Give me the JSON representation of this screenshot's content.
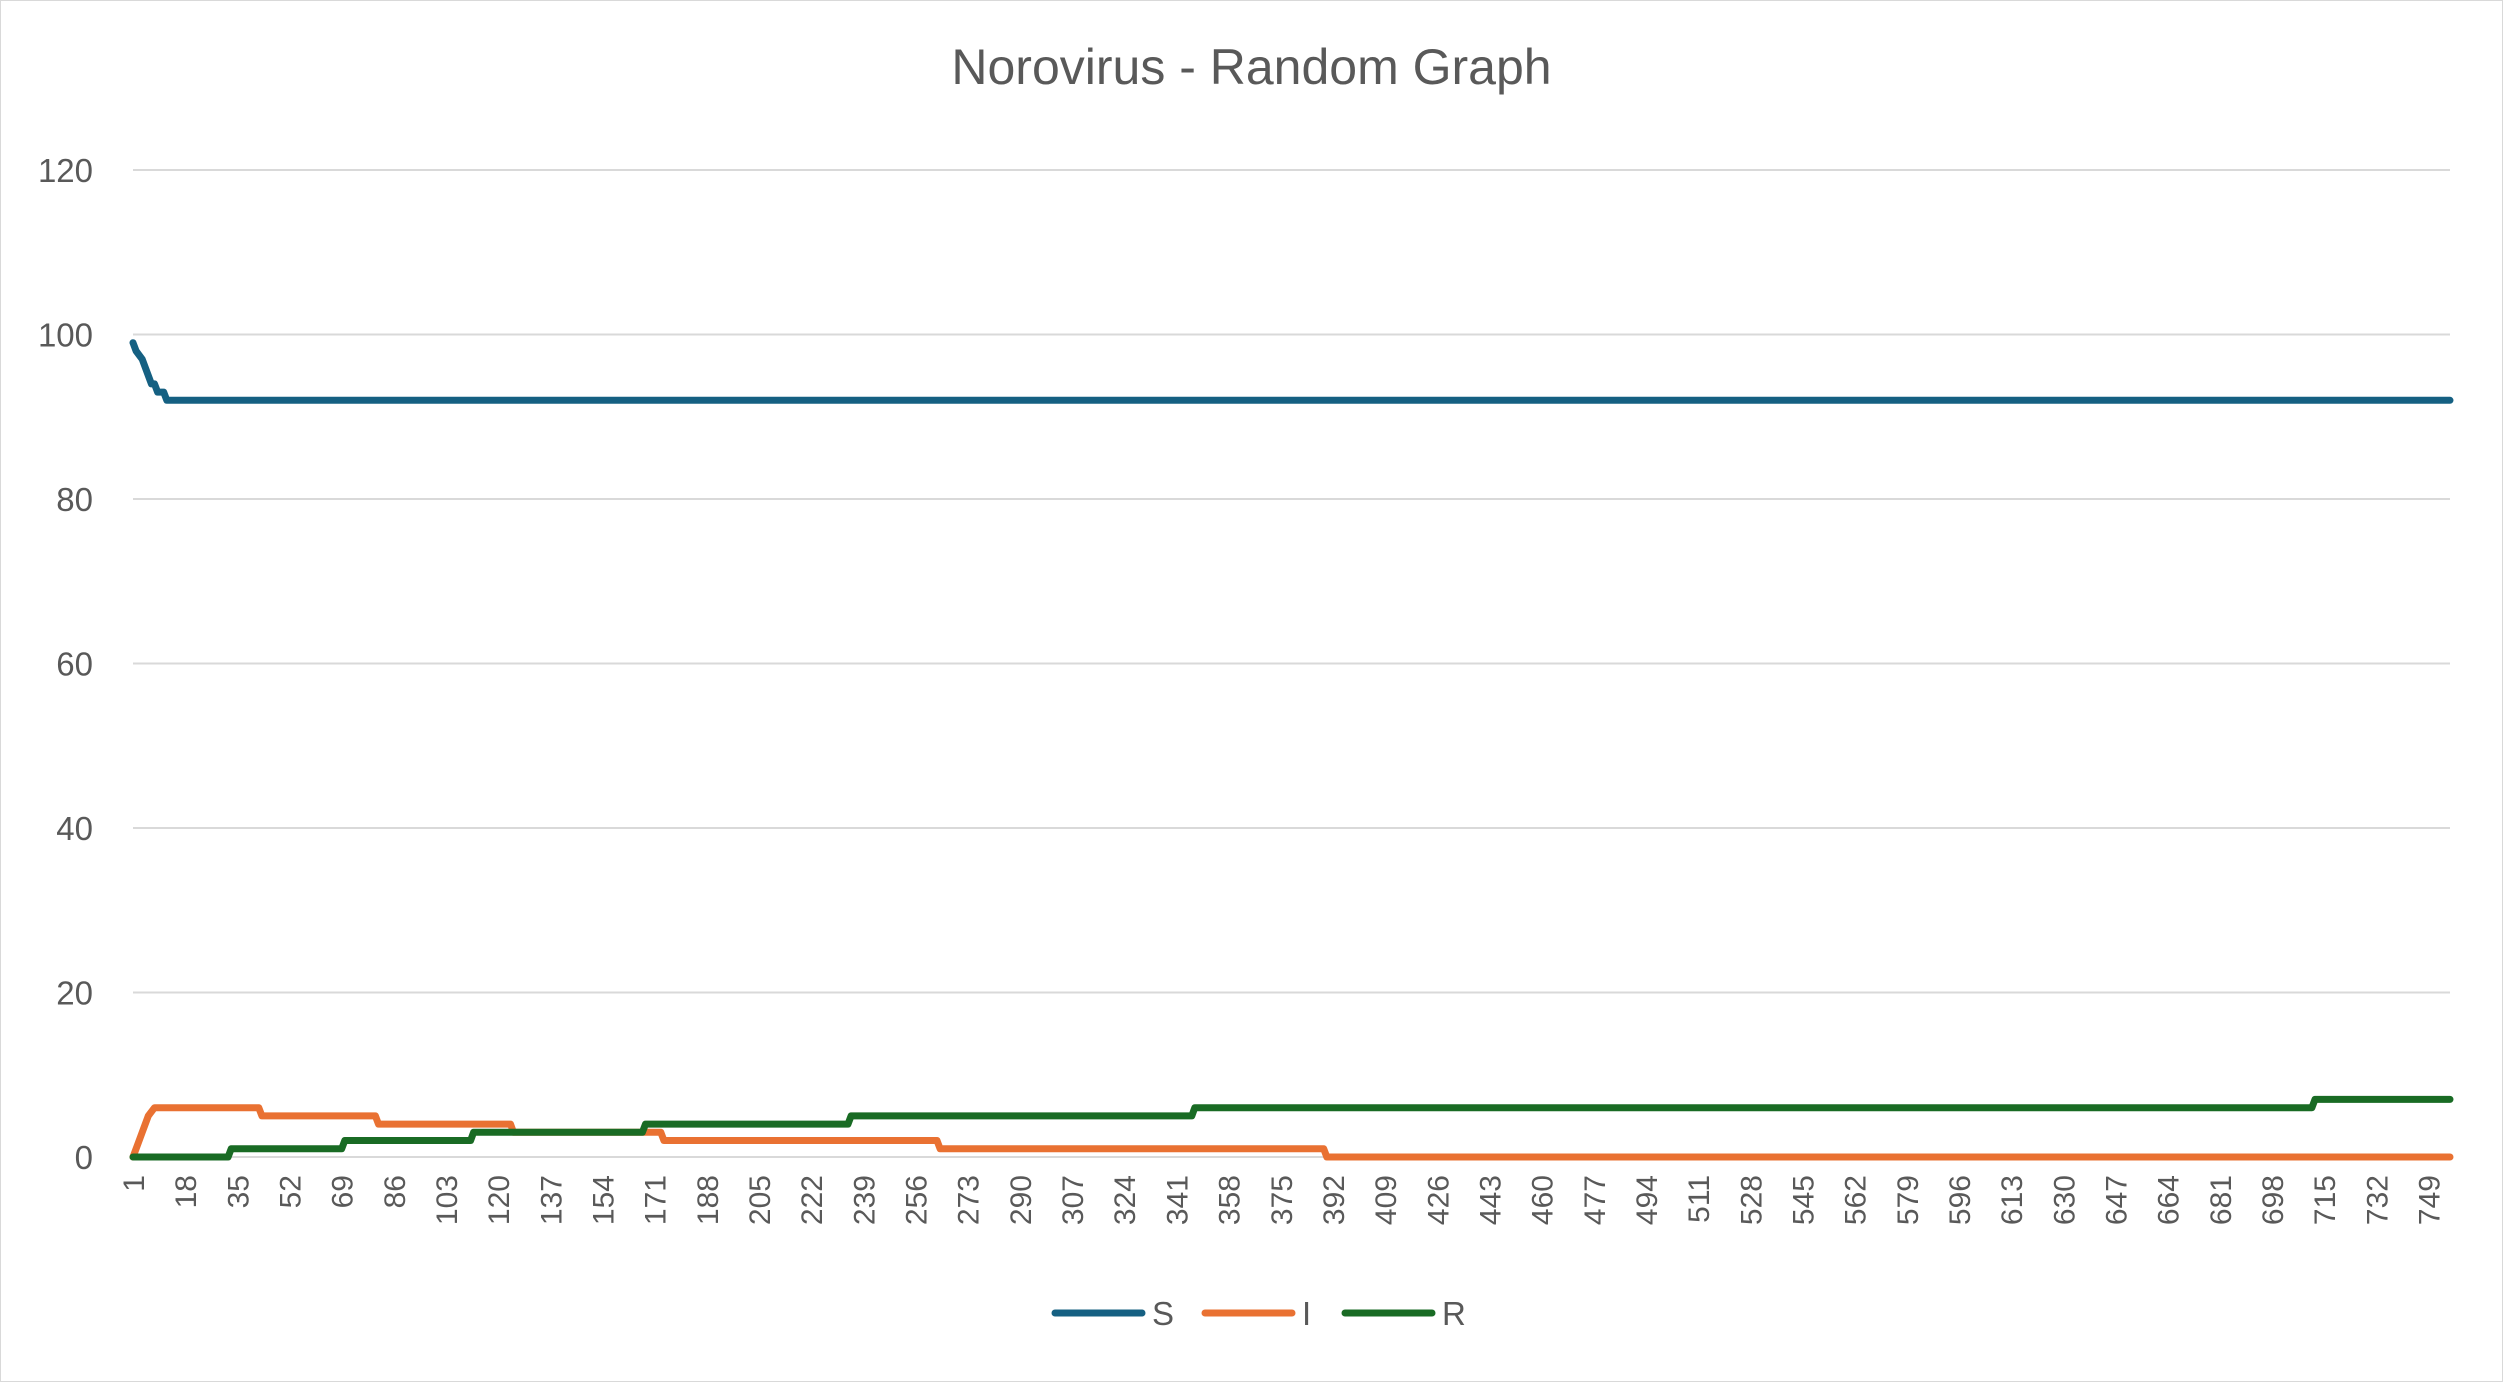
{
  "chart_data": {
    "type": "line",
    "title": "Norovirus - Random Graph",
    "xlabel": "",
    "ylabel": "",
    "ylim": [
      0,
      120
    ],
    "yticks": [
      0,
      20,
      40,
      60,
      80,
      100,
      120
    ],
    "xrange": [
      1,
      756
    ],
    "xticks": [
      1,
      18,
      35,
      52,
      69,
      86,
      103,
      120,
      137,
      154,
      171,
      188,
      205,
      222,
      239,
      256,
      273,
      290,
      307,
      324,
      341,
      358,
      375,
      392,
      409,
      426,
      443,
      460,
      477,
      494,
      511,
      528,
      545,
      562,
      579,
      596,
      613,
      630,
      647,
      664,
      681,
      698,
      715,
      732,
      749
    ],
    "grid": "horizontal",
    "legend_position": "bottom",
    "series": [
      {
        "name": "S",
        "color": "#156082",
        "points": [
          [
            1,
            99
          ],
          [
            2,
            98
          ],
          [
            4,
            97
          ],
          [
            7,
            94
          ],
          [
            8,
            94
          ],
          [
            9,
            93
          ],
          [
            10,
            93
          ],
          [
            11,
            93
          ],
          [
            12,
            92
          ],
          [
            756,
            92
          ]
        ]
      },
      {
        "name": "I",
        "color": "#E97132",
        "points": [
          [
            1,
            0
          ],
          [
            2,
            1
          ],
          [
            4,
            3
          ],
          [
            6,
            5
          ],
          [
            8,
            6
          ],
          [
            42,
            6
          ],
          [
            43,
            5
          ],
          [
            80,
            5
          ],
          [
            81,
            4
          ],
          [
            124,
            4
          ],
          [
            125,
            3
          ],
          [
            173,
            3
          ],
          [
            174,
            2
          ],
          [
            263,
            2
          ],
          [
            264,
            1
          ],
          [
            389,
            1
          ],
          [
            390,
            0
          ],
          [
            756,
            0
          ]
        ]
      },
      {
        "name": "R",
        "color": "#196B24",
        "points": [
          [
            1,
            0
          ],
          [
            32,
            0
          ],
          [
            33,
            1
          ],
          [
            69,
            1
          ],
          [
            70,
            2
          ],
          [
            111,
            2
          ],
          [
            112,
            3
          ],
          [
            167,
            3
          ],
          [
            168,
            4
          ],
          [
            234,
            4
          ],
          [
            235,
            5
          ],
          [
            346,
            5
          ],
          [
            347,
            6
          ],
          [
            711,
            6
          ],
          [
            712,
            7
          ],
          [
            756,
            7
          ]
        ]
      }
    ]
  }
}
